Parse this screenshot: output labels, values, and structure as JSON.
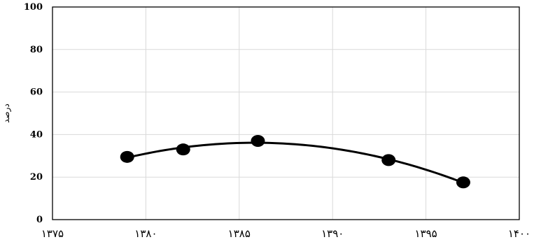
{
  "chart_data": {
    "type": "scatter",
    "title": "",
    "xlabel": "",
    "ylabel": "درصد",
    "xlim": [
      1375,
      1400
    ],
    "ylim": [
      0,
      100
    ],
    "x_ticks": [
      1375,
      1380,
      1385,
      1390,
      1395,
      1400
    ],
    "x_tick_labels": [
      "۱۳۷۵",
      "۱۳۸۰",
      "۱۳۸۵",
      "۱۳۹۰",
      "۱۳۹۵",
      "۱۴۰۰"
    ],
    "y_ticks": [
      0,
      20,
      40,
      60,
      80,
      100
    ],
    "y_tick_labels": [
      "0",
      "20",
      "40",
      "60",
      "80",
      "100"
    ],
    "grid": true,
    "series": [
      {
        "points": [
          {
            "x": 1379,
            "y": 29.5
          },
          {
            "x": 1382,
            "y": 33
          },
          {
            "x": 1386,
            "y": 37
          },
          {
            "x": 1393,
            "y": 28
          },
          {
            "x": 1397,
            "y": 17.5
          }
        ],
        "trendline": "polynomial"
      }
    ],
    "colors": {
      "points": "#000000",
      "trendline": "#000000",
      "grid": "#d9d9d9",
      "frame": "#000000"
    }
  }
}
